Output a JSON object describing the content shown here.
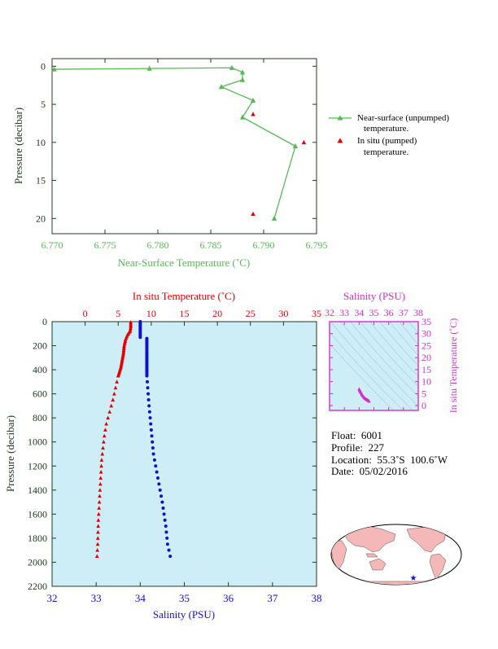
{
  "colors": {
    "near_surface": "#56b956",
    "insitu_pumped": "#e00000",
    "temperature": "#e00000",
    "salinity": "#1111cc",
    "inset": "#d42fc8",
    "panel_bg": "#cdeef7",
    "axis_dark": "#203a20",
    "land": "#f5b8b8"
  },
  "chart_data": [
    {
      "type": "line",
      "xlabel": "Near-Surface Temperature (˚C)",
      "ylabel": "Pressure (decibar)",
      "xlim": [
        6.77,
        6.795
      ],
      "ylim": [
        22,
        -1
      ],
      "x_ticks": [
        "6.770",
        "6.775",
        "6.780",
        "6.785",
        "6.790",
        "6.795"
      ],
      "y_ticks": [
        "0",
        "5",
        "10",
        "15",
        "20"
      ],
      "grid": false,
      "legend_position": "right",
      "series": [
        {
          "name": "Near-surface (unpumped) temperature.",
          "marker": "triangle",
          "points": [
            {
              "x": 6.7702,
              "y": 0.4
            },
            {
              "x": 6.7792,
              "y": 0.3
            },
            {
              "x": 6.787,
              "y": 0.2
            },
            {
              "x": 6.788,
              "y": 0.8
            },
            {
              "x": 6.788,
              "y": 1.8
            },
            {
              "x": 6.786,
              "y": 2.7
            },
            {
              "x": 6.789,
              "y": 4.5
            },
            {
              "x": 6.788,
              "y": 6.7
            },
            {
              "x": 6.793,
              "y": 10.5
            },
            {
              "x": 6.791,
              "y": 20.0
            }
          ]
        },
        {
          "name": "In situ (pumped) temperature.",
          "marker": "triangle",
          "points": [
            {
              "x": 6.789,
              "y": 6.3
            },
            {
              "x": 6.7938,
              "y": 10.0
            },
            {
              "x": 6.789,
              "y": 19.4
            }
          ]
        }
      ]
    },
    {
      "type": "scatter",
      "title": "In situ Temperature (˚C)",
      "xlabel": "Salinity (PSU)",
      "ylabel": "Pressure (decibar)",
      "salinity_lim": [
        32,
        38
      ],
      "temperature_lim": [
        -5,
        35
      ],
      "ylim": [
        2200,
        0
      ],
      "salinity_ticks": [
        "32",
        "33",
        "34",
        "35",
        "36",
        "37",
        "38"
      ],
      "temperature_ticks": [
        "0",
        "5",
        "10",
        "15",
        "20",
        "25",
        "30",
        "35"
      ],
      "pressure_ticks": [
        "0",
        "200",
        "400",
        "600",
        "800",
        "1000",
        "1200",
        "1400",
        "1600",
        "1800",
        "2000",
        "2200"
      ],
      "grid": false,
      "series": [
        {
          "marker": "triangle",
          "axis": "temperature",
          "profile": [
            [
              6.9,
              5
            ],
            [
              6.9,
              40
            ],
            [
              6.8,
              80
            ],
            [
              6.4,
              110
            ],
            [
              6.1,
              150
            ],
            [
              5.9,
              200
            ],
            [
              5.8,
              260
            ],
            [
              5.6,
              320
            ],
            [
              5.4,
              380
            ],
            [
              5.0,
              450
            ],
            [
              4.6,
              550
            ],
            [
              4.2,
              650
            ],
            [
              3.7,
              750
            ],
            [
              3.2,
              850
            ],
            [
              2.9,
              950
            ],
            [
              2.7,
              1050
            ],
            [
              2.5,
              1150
            ],
            [
              2.4,
              1250
            ],
            [
              2.3,
              1350
            ],
            [
              2.2,
              1450
            ],
            [
              2.1,
              1550
            ],
            [
              2.0,
              1650
            ],
            [
              1.95,
              1750
            ],
            [
              1.9,
              1850
            ],
            [
              1.8,
              1950
            ]
          ]
        },
        {
          "marker": "dot",
          "axis": "salinity",
          "profile": [
            [
              34.0,
              0
            ],
            [
              34.0,
              130
            ],
            [
              34.15,
              140
            ],
            [
              34.15,
              400
            ],
            [
              34.15,
              450
            ],
            [
              34.2,
              700
            ],
            [
              34.25,
              900
            ],
            [
              34.3,
              1100
            ],
            [
              34.4,
              1300
            ],
            [
              34.5,
              1500
            ],
            [
              34.58,
              1700
            ],
            [
              34.62,
              1850
            ],
            [
              34.68,
              1950
            ]
          ]
        }
      ]
    },
    {
      "type": "scatter",
      "title": "Salinity (PSU)",
      "ylabel": "In situ Temperature (˚C)",
      "xlim": [
        32,
        38
      ],
      "ylim": [
        -2,
        35
      ],
      "x_ticks": [
        "32",
        "33",
        "34",
        "35",
        "36",
        "37",
        "38"
      ],
      "y_ticks": [
        "0",
        "5",
        "10",
        "15",
        "20",
        "25",
        "30",
        "35"
      ],
      "points": [
        [
          34.0,
          6.9
        ],
        [
          34.05,
          6.2
        ],
        [
          34.1,
          5.8
        ],
        [
          34.15,
          5.2
        ],
        [
          34.2,
          4.5
        ],
        [
          34.3,
          3.7
        ],
        [
          34.4,
          3.0
        ],
        [
          34.5,
          2.6
        ],
        [
          34.6,
          2.2
        ],
        [
          34.68,
          1.8
        ]
      ]
    }
  ],
  "legend": [
    {
      "line1": "Near-surface (unpumped)",
      "line2": "temperature."
    },
    {
      "line1": "In situ (pumped)",
      "line2": "temperature."
    }
  ],
  "info": {
    "float": "Float:  6001",
    "profile": "Profile:  227",
    "location": "Location:  55.3˚S  100.6˚W",
    "date": "Date:  05/02/2016"
  },
  "map": {
    "marker_icon": "star-icon"
  }
}
